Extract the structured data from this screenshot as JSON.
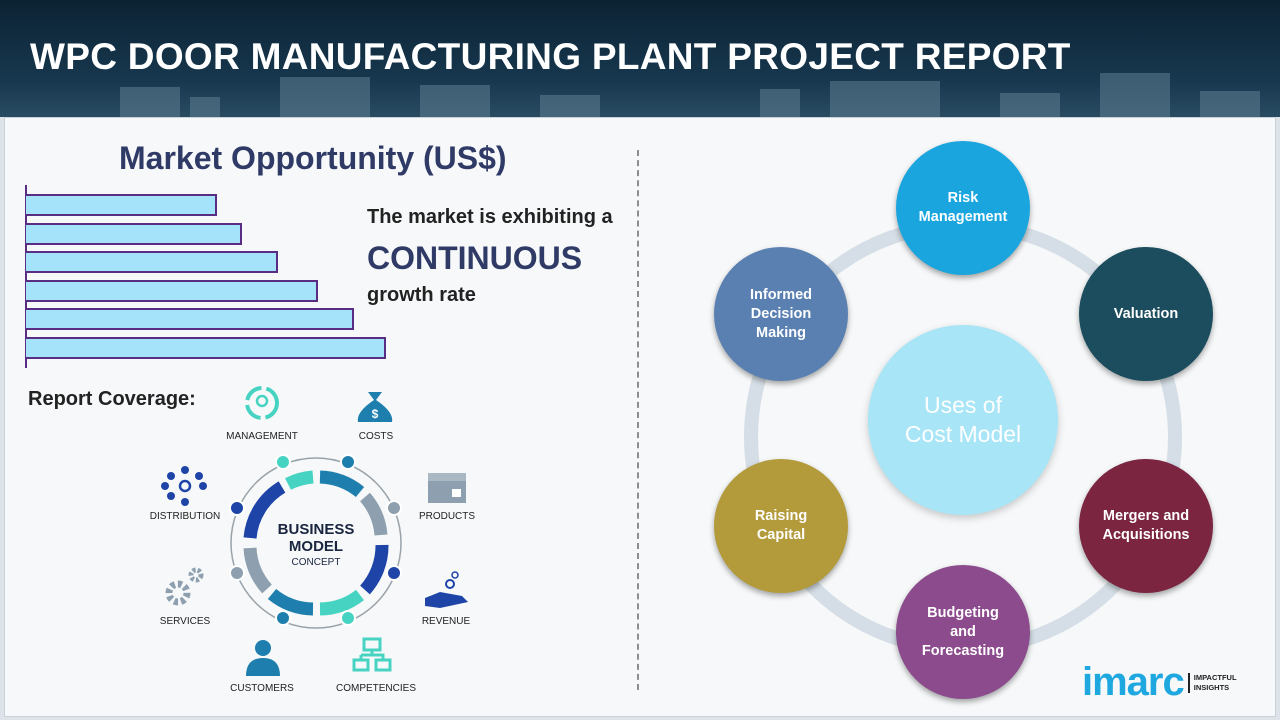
{
  "header": {
    "title": "WPC DOOR MANUFACTURING PLANT PROJECT REPORT"
  },
  "market": {
    "title": "Market Opportunity (US$)",
    "line1": "The market is exhibiting a",
    "line2": "CONTINUOUS",
    "line3": "growth rate",
    "bar_levels": [
      0.53,
      0.6,
      0.7,
      0.81,
      0.91,
      1.0
    ],
    "bar_color": "#a5e3fb",
    "border_color": "#5a2d84"
  },
  "coverage": {
    "title": "Report Coverage:",
    "center_line1": "BUSINESS",
    "center_line2": "MODEL",
    "center_line3": "CONCEPT",
    "items": [
      {
        "label": "MANAGEMENT",
        "icon": "lightbulb-cycle-icon"
      },
      {
        "label": "COSTS",
        "icon": "money-bag-icon"
      },
      {
        "label": "PRODUCTS",
        "icon": "box-icon"
      },
      {
        "label": "REVENUE",
        "icon": "hand-coins-icon"
      },
      {
        "label": "COMPETENCIES",
        "icon": "org-chart-icon"
      },
      {
        "label": "CUSTOMERS",
        "icon": "person-icon"
      },
      {
        "label": "SERVICES",
        "icon": "gears-icon"
      },
      {
        "label": "DISTRIBUTION",
        "icon": "network-icon"
      }
    ]
  },
  "uses": {
    "center_line1": "Uses of",
    "center_line2": "Cost Model",
    "items": [
      {
        "label": "Risk Management",
        "color": "#1aa5de"
      },
      {
        "label": "Valuation",
        "color": "#1c4d5e"
      },
      {
        "label": "Mergers and Acquisitions",
        "color": "#7b2541"
      },
      {
        "label": "Budgeting and Forecasting",
        "color": "#8b4b8c"
      },
      {
        "label": "Raising Capital",
        "color": "#b39a3a"
      },
      {
        "label": "Informed Decision Making",
        "color": "#5a80b2"
      }
    ]
  },
  "logo": {
    "word": "imarc",
    "tag1": "IMPACTFUL",
    "tag2": "INSIGHTS"
  }
}
